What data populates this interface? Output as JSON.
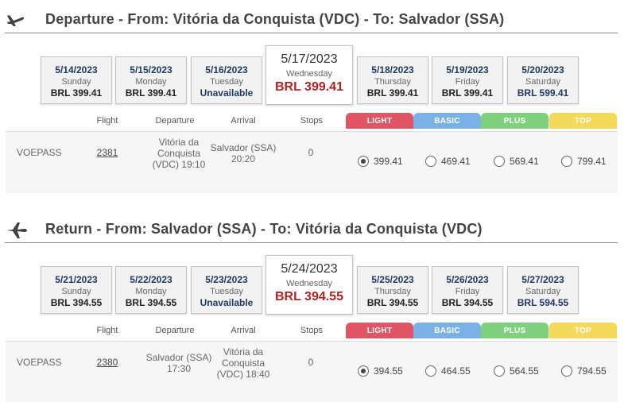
{
  "departure": {
    "title": "Departure - From: Vitória da Conquista (VDC) - To: Salvador (SSA)",
    "icon": "plane-takeoff-icon",
    "dates": [
      {
        "date": "5/14/2023",
        "weekday": "Sunday",
        "price": "BRL 399.41",
        "style": "normal"
      },
      {
        "date": "5/15/2023",
        "weekday": "Monday",
        "price": "BRL 399.41",
        "style": "normal"
      },
      {
        "date": "5/16/2023",
        "weekday": "Tuesday",
        "price": "Unavailable",
        "style": "unavail"
      },
      {
        "date": "5/17/2023",
        "weekday": "Wednesday",
        "price": "BRL 399.41",
        "style": "selected"
      },
      {
        "date": "5/18/2023",
        "weekday": "Thursday",
        "price": "BRL 399.41",
        "style": "normal"
      },
      {
        "date": "5/19/2023",
        "weekday": "Friday",
        "price": "BRL 399.41",
        "style": "normal"
      },
      {
        "date": "5/20/2023",
        "weekday": "Saturday",
        "price": "BRL 599.41",
        "style": "high"
      }
    ],
    "columns": {
      "flight": "Flight",
      "departure": "Departure",
      "arrival": "Arrival",
      "stops": "Stops"
    },
    "tiers": [
      "LIGHT",
      "BASIC",
      "PLUS",
      "TOP"
    ],
    "flight": {
      "airline": "VOEPASS",
      "number": "2381",
      "departure_line1": "Vitória da",
      "departure_line2": "Conquista",
      "departure_line3": "(VDC) 19:10",
      "arrival_line1": "Salvador (SSA)",
      "arrival_line2": "20:20",
      "arrival_line3": "",
      "stops": "0",
      "fares": [
        "399.41",
        "469.41",
        "569.41",
        "799.41"
      ],
      "selected_fare": 0
    }
  },
  "return": {
    "title": "Return - From: Salvador (SSA) - To: Vitória da Conquista (VDC)",
    "icon": "plane-landing-icon",
    "dates": [
      {
        "date": "5/21/2023",
        "weekday": "Sunday",
        "price": "BRL 394.55",
        "style": "normal"
      },
      {
        "date": "5/22/2023",
        "weekday": "Monday",
        "price": "BRL 394.55",
        "style": "normal"
      },
      {
        "date": "5/23/2023",
        "weekday": "Tuesday",
        "price": "Unavailable",
        "style": "unavail"
      },
      {
        "date": "5/24/2023",
        "weekday": "Wednesday",
        "price": "BRL 394.55",
        "style": "selected"
      },
      {
        "date": "5/25/2023",
        "weekday": "Thursday",
        "price": "BRL 394.55",
        "style": "normal"
      },
      {
        "date": "5/26/2023",
        "weekday": "Friday",
        "price": "BRL 394.55",
        "style": "normal"
      },
      {
        "date": "5/27/2023",
        "weekday": "Saturday",
        "price": "BRL 594.55",
        "style": "high"
      }
    ],
    "columns": {
      "flight": "Flight",
      "departure": "Departure",
      "arrival": "Arrival",
      "stops": "Stops"
    },
    "tiers": [
      "LIGHT",
      "BASIC",
      "PLUS",
      "TOP"
    ],
    "flight": {
      "airline": "VOEPASS",
      "number": "2380",
      "departure_line1": "Salvador (SSA)",
      "departure_line2": "17:30",
      "departure_line3": "",
      "arrival_line1": "Vitória da",
      "arrival_line2": "Conquista",
      "arrival_line3": "(VDC) 18:40",
      "stops": "0",
      "fares": [
        "394.55",
        "464.55",
        "564.55",
        "794.55"
      ],
      "selected_fare": 0
    }
  }
}
